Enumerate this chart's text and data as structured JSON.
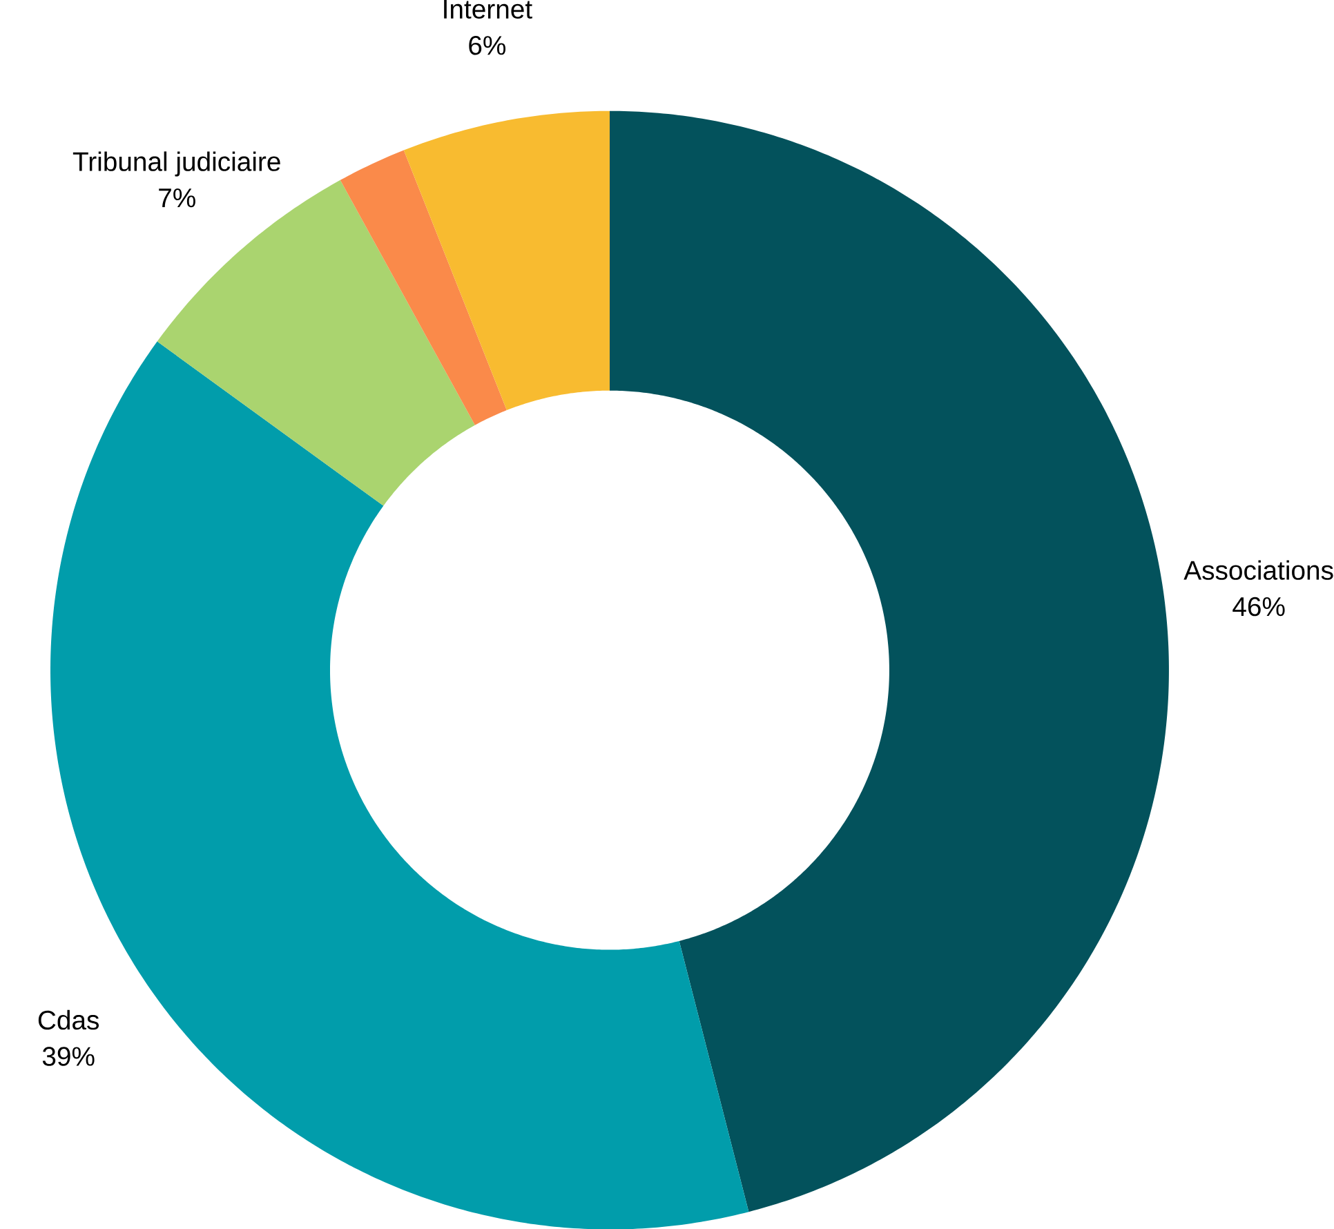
{
  "chart_data": {
    "type": "donut",
    "categories": [
      "Associations",
      "Cdas",
      "Tribunal judiciaire",
      null,
      "Internet"
    ],
    "values": [
      46,
      39,
      7,
      2,
      6
    ],
    "colors": [
      "#03525c",
      "#019dab",
      "#aad46f",
      "#fa8a4a",
      "#f8bb30"
    ],
    "value_labels": [
      "46%",
      "39%",
      "7%",
      null,
      "6%"
    ]
  }
}
